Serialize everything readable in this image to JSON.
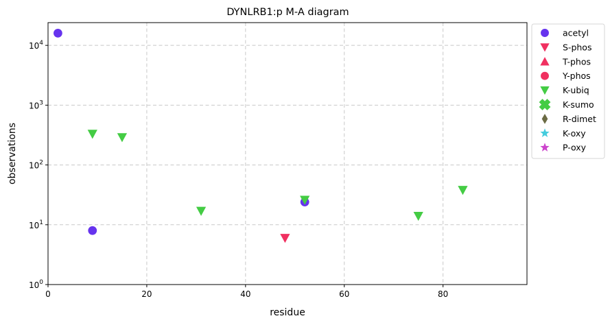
{
  "chart_data": {
    "type": "scatter",
    "title": "DYNLRB1:p M-A diagram",
    "xlabel": "residue",
    "ylabel": "observations",
    "xlim": [
      0,
      97
    ],
    "ylim": [
      1,
      24000
    ],
    "yscale": "log",
    "grid": true,
    "legend_position": "outside-right",
    "x_ticks": [
      "0",
      "20",
      "40",
      "60",
      "80"
    ],
    "x_tick_values": [
      0,
      20,
      40,
      60,
      80
    ],
    "y_ticks": [
      {
        "base": "10",
        "exp": "0",
        "value": 1
      },
      {
        "base": "10",
        "exp": "1",
        "value": 10
      },
      {
        "base": "10",
        "exp": "2",
        "value": 100
      },
      {
        "base": "10",
        "exp": "3",
        "value": 1000
      },
      {
        "base": "10",
        "exp": "4",
        "value": 10000
      }
    ],
    "series": [
      {
        "name": "acetyl",
        "marker": "circle",
        "color": "#6633ee",
        "points": [
          {
            "x": 2,
            "y": 16000
          },
          {
            "x": 9,
            "y": 8
          },
          {
            "x": 52,
            "y": 24
          }
        ]
      },
      {
        "name": "S-phos",
        "marker": "triangle-down",
        "color": "#f03060",
        "points": [
          {
            "x": 48,
            "y": 6
          }
        ]
      },
      {
        "name": "T-phos",
        "marker": "triangle-up",
        "color": "#f03060",
        "points": []
      },
      {
        "name": "Y-phos",
        "marker": "circle",
        "color": "#f03060",
        "points": []
      },
      {
        "name": "K-ubiq",
        "marker": "triangle-down",
        "color": "#44cc44",
        "points": [
          {
            "x": 9,
            "y": 330
          },
          {
            "x": 15,
            "y": 290
          },
          {
            "x": 31,
            "y": 17
          },
          {
            "x": 52,
            "y": 26
          },
          {
            "x": 75,
            "y": 14
          },
          {
            "x": 84,
            "y": 38
          }
        ]
      },
      {
        "name": "K-sumo",
        "marker": "x-filled",
        "color": "#44cc44",
        "points": []
      },
      {
        "name": "R-dimet",
        "marker": "diamond",
        "color": "#6b6b44",
        "points": []
      },
      {
        "name": "K-oxy",
        "marker": "star",
        "color": "#44ccdd",
        "points": []
      },
      {
        "name": "P-oxy",
        "marker": "star",
        "color": "#cc44cc",
        "points": []
      }
    ]
  }
}
